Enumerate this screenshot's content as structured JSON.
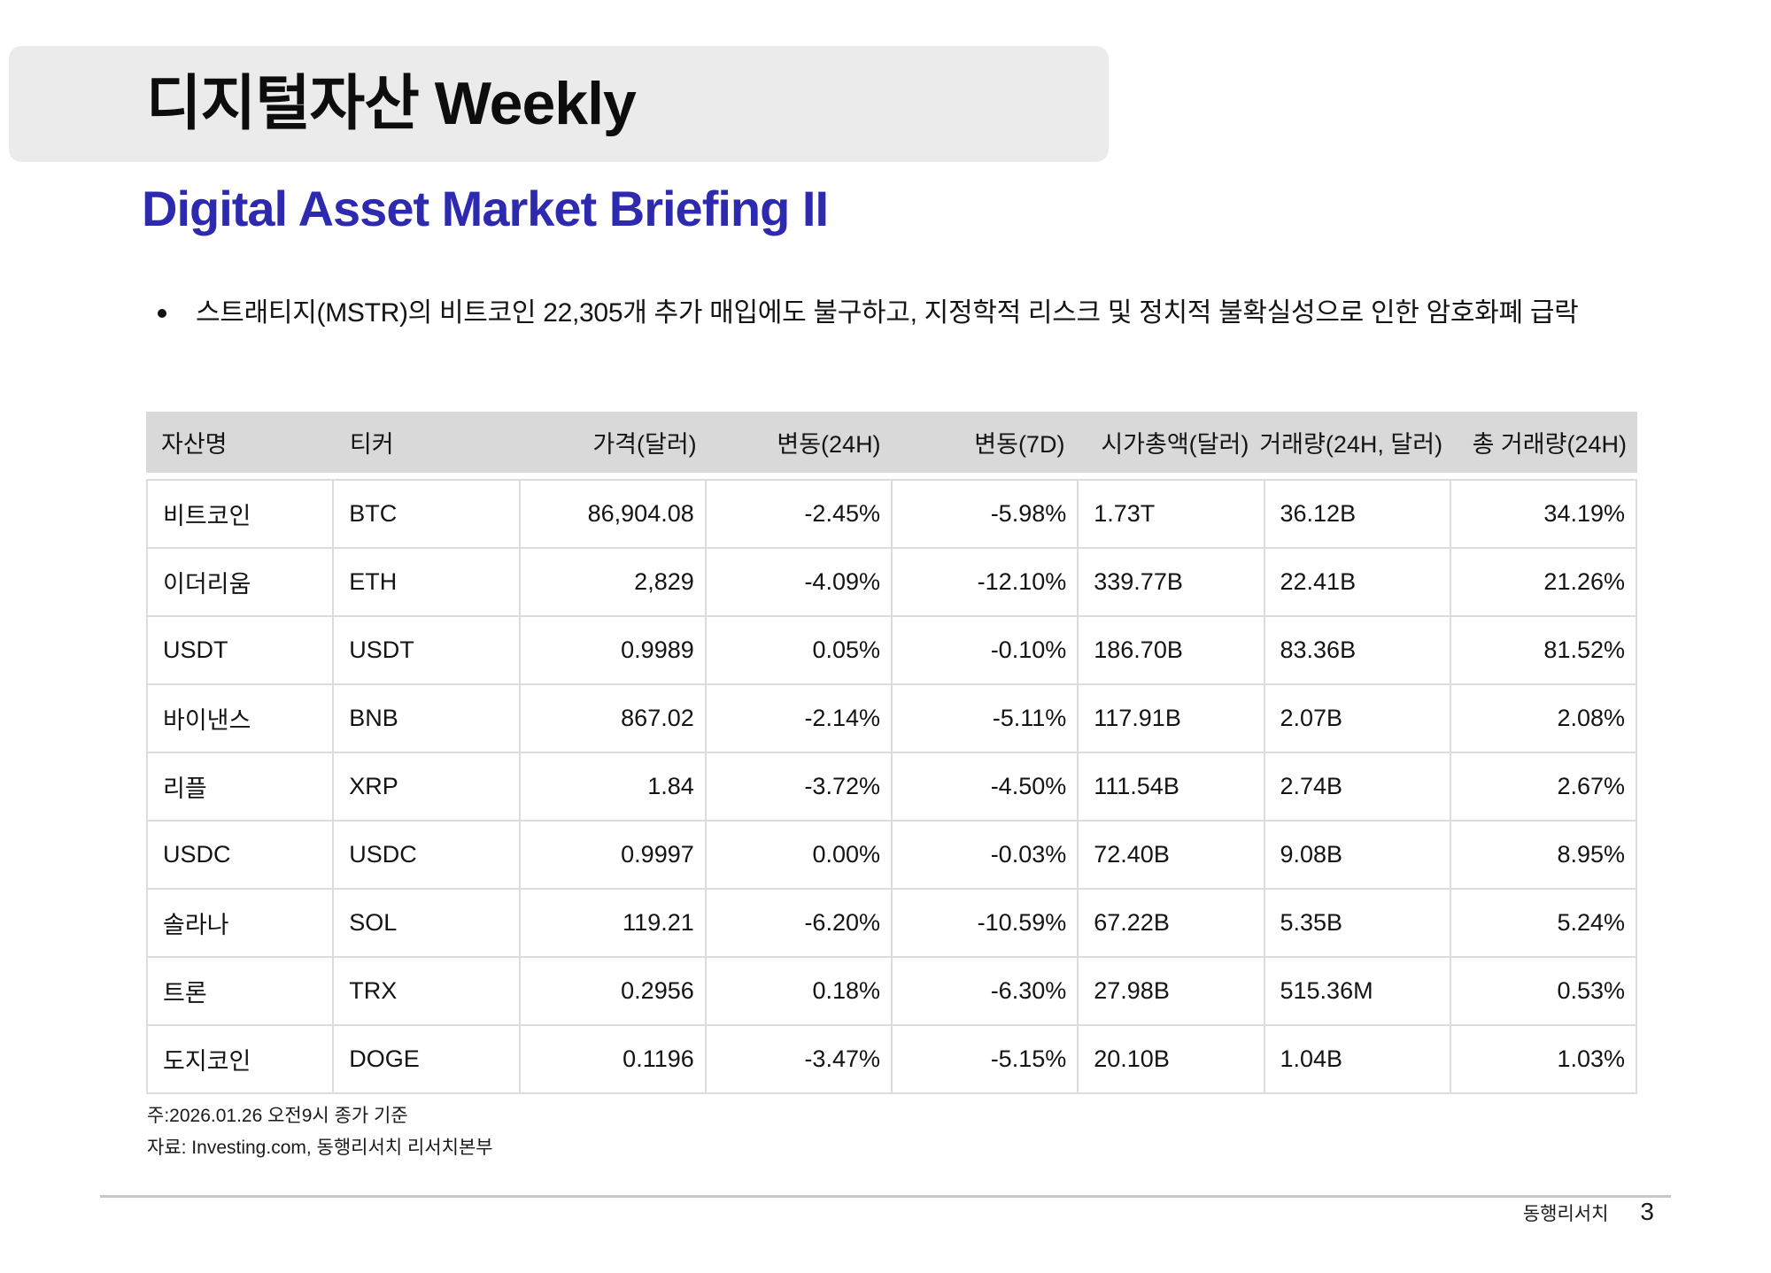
{
  "page": {
    "title": "디지털자산 Weekly",
    "subtitle": "Digital Asset Market Briefing II",
    "bullet": "스트래티지(MSTR)의 비트코인 22,305개 추가 매입에도 불구하고, 지정학적 리스크 및 정치적 불확실성으로 인한 암호화폐 급락",
    "colors": {
      "accent_blue": "#2e2ab0",
      "banner_gray": "#ebebeb",
      "table_header_gray": "#d9d9d9",
      "grid_line": "#dcdcdc"
    }
  },
  "table": {
    "columns": [
      {
        "label": "자산명",
        "align": "left"
      },
      {
        "label": "티커",
        "align": "left"
      },
      {
        "label": "가격(달러)",
        "align": "right"
      },
      {
        "label": "변동(24H)",
        "align": "right"
      },
      {
        "label": "변동(7D)",
        "align": "right"
      },
      {
        "label": "시가총액(달러)",
        "align": "right"
      },
      {
        "label": "거래량(24H, 달러)",
        "align": "right"
      },
      {
        "label": "총 거래량(24H)",
        "align": "right"
      }
    ],
    "body_align": [
      "left",
      "left",
      "right",
      "right",
      "right",
      "left",
      "left",
      "right"
    ],
    "rows": [
      [
        "비트코인",
        "BTC",
        "86,904.08",
        "-2.45%",
        "-5.98%",
        "1.73T",
        "36.12B",
        "34.19%"
      ],
      [
        "이더리움",
        "ETH",
        "2,829",
        "-4.09%",
        "-12.10%",
        "339.77B",
        "22.41B",
        "21.26%"
      ],
      [
        "USDT",
        "USDT",
        "0.9989",
        "0.05%",
        "-0.10%",
        "186.70B",
        "83.36B",
        "81.52%"
      ],
      [
        "바이낸스",
        "BNB",
        "867.02",
        "-2.14%",
        "-5.11%",
        "117.91B",
        "2.07B",
        "2.08%"
      ],
      [
        "리플",
        "XRP",
        "1.84",
        "-3.72%",
        "-4.50%",
        "111.54B",
        "2.74B",
        "2.67%"
      ],
      [
        "USDC",
        "USDC",
        "0.9997",
        "0.00%",
        "-0.03%",
        "72.40B",
        "9.08B",
        "8.95%"
      ],
      [
        "솔라나",
        "SOL",
        "119.21",
        "-6.20%",
        "-10.59%",
        "67.22B",
        "5.35B",
        "5.24%"
      ],
      [
        "트론",
        "TRX",
        "0.2956",
        "0.18%",
        "-6.30%",
        "27.98B",
        "515.36M",
        "0.53%"
      ],
      [
        "도지코인",
        "DOGE",
        "0.1196",
        "-3.47%",
        "-5.15%",
        "20.10B",
        "1.04B",
        "1.03%"
      ]
    ]
  },
  "notes": {
    "basis": "주:2026.01.26 오전9시 종가 기준",
    "source": "자료: Investing.com, 동행리서치 리서치본부"
  },
  "footer": {
    "brand": "동행리서치",
    "page_number": "3"
  }
}
